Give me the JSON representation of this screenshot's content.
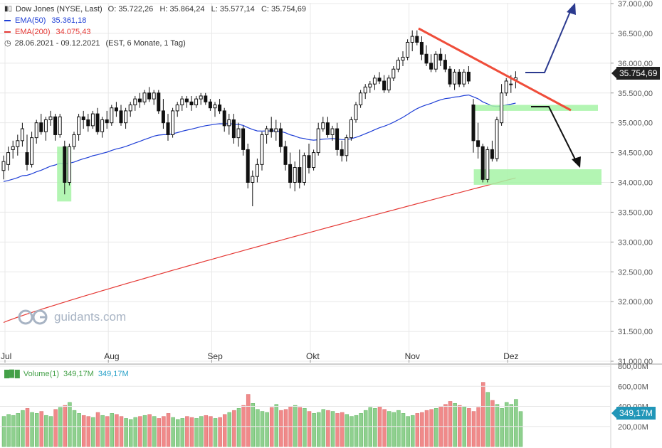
{
  "legend": {
    "title": "Dow Jones (NYSE, Last)",
    "ohlc": "O: 35.722,26   H: 35.864,24   L: 35.577,14   C: 35.754,69",
    "ema50_label": "EMA(50)",
    "ema50_value": "35.361,18",
    "ema200_label": "EMA(200)",
    "ema200_value": "34.075,43",
    "range": "28.06.2021 - 09.12.2021",
    "range_note": "(EST, 6 Monate, 1 Tag)"
  },
  "price_badge": "35.754,69",
  "volume_legend": {
    "label": "Volume(1)",
    "value1": "349,17M",
    "value2": "349,17M"
  },
  "volume_badge": "349,17M",
  "watermark": "guidants.com",
  "colors": {
    "up": "#ffffff",
    "down": "#111111",
    "ema50": "#1f3fd6",
    "ema200": "#e53935",
    "trendline": "#ef4d3a",
    "arrow_up": "#2b3a8f",
    "arrow_down": "#111111",
    "highlight": "#a6f3a6",
    "vol_up": "#8fd08f",
    "vol_down": "#f08a8a",
    "grid": "#e8e8e8"
  },
  "chart_data": {
    "type": "candlestick",
    "y_ticks": [
      "37.000,00",
      "36.500,00",
      "36.000,00",
      "35.500,00",
      "35.000,00",
      "34.500,00",
      "34.000,00",
      "33.500,00",
      "33.000,00",
      "32.500,00",
      "32.000,00",
      "31.500,00",
      "31.000,00"
    ],
    "y_values": [
      37000,
      36500,
      36000,
      35500,
      35000,
      34500,
      34000,
      33500,
      33000,
      32500,
      32000,
      31500,
      31000
    ],
    "ylim": [
      31000,
      37050
    ],
    "x_ticks": [
      {
        "label": "Jul",
        "bar": 0
      },
      {
        "label": "Aug",
        "bar": 22
      },
      {
        "label": "Sep",
        "bar": 44
      },
      {
        "label": "Okt",
        "bar": 65
      },
      {
        "label": "Nov",
        "bar": 86
      },
      {
        "label": "Dez",
        "bar": 107
      }
    ],
    "ohlc": [
      [
        34200,
        34450,
        34050,
        34350
      ],
      [
        34300,
        34600,
        34200,
        34500
      ],
      [
        34550,
        34700,
        34400,
        34600
      ],
      [
        34600,
        34800,
        34450,
        34700
      ],
      [
        34700,
        35000,
        34600,
        34900
      ],
      [
        34500,
        34800,
        34200,
        34300
      ],
      [
        34300,
        34850,
        34250,
        34750
      ],
      [
        34750,
        35050,
        34650,
        35000
      ],
      [
        35000,
        35150,
        34800,
        34850
      ],
      [
        34850,
        35100,
        34700,
        35050
      ],
      [
        35050,
        35200,
        34950,
        35100
      ],
      [
        35100,
        35150,
        34700,
        34800
      ],
      [
        34800,
        35150,
        34750,
        35100
      ],
      [
        34600,
        34700,
        33800,
        34000
      ],
      [
        34000,
        34650,
        33950,
        34600
      ],
      [
        34600,
        34850,
        34550,
        34800
      ],
      [
        34800,
        35150,
        34700,
        35100
      ],
      [
        35100,
        35200,
        34900,
        35050
      ],
      [
        35050,
        35150,
        34850,
        34950
      ],
      [
        34950,
        35200,
        34900,
        35150
      ],
      [
        35150,
        35250,
        34800,
        34850
      ],
      [
        34850,
        35100,
        34750,
        35050
      ],
      [
        35050,
        35200,
        34900,
        35000
      ],
      [
        35000,
        35300,
        34950,
        35250
      ],
      [
        35250,
        35350,
        35100,
        35200
      ],
      [
        35200,
        35300,
        34950,
        35000
      ],
      [
        35000,
        35250,
        34900,
        35200
      ],
      [
        35200,
        35350,
        35100,
        35300
      ],
      [
        35300,
        35450,
        35200,
        35400
      ],
      [
        35400,
        35500,
        35250,
        35350
      ],
      [
        35350,
        35550,
        35300,
        35500
      ],
      [
        35500,
        35600,
        35350,
        35400
      ],
      [
        35400,
        35550,
        35300,
        35500
      ],
      [
        35500,
        35550,
        35150,
        35200
      ],
      [
        35200,
        35400,
        34900,
        35000
      ],
      [
        35000,
        35150,
        34700,
        34800
      ],
      [
        34800,
        35250,
        34750,
        35200
      ],
      [
        35200,
        35350,
        35100,
        35300
      ],
      [
        35300,
        35450,
        35200,
        35400
      ],
      [
        35400,
        35450,
        35250,
        35350
      ],
      [
        35350,
        35450,
        35200,
        35300
      ],
      [
        35300,
        35450,
        35250,
        35400
      ],
      [
        35400,
        35500,
        35300,
        35450
      ],
      [
        35450,
        35500,
        35300,
        35350
      ],
      [
        35350,
        35400,
        35200,
        35250
      ],
      [
        35250,
        35350,
        35100,
        35300
      ],
      [
        35300,
        35400,
        35150,
        35200
      ],
      [
        35200,
        35250,
        34850,
        34950
      ],
      [
        34950,
        35150,
        34800,
        35050
      ],
      [
        35050,
        35150,
        34650,
        34750
      ],
      [
        34750,
        35000,
        34600,
        34900
      ],
      [
        34900,
        34950,
        34450,
        34550
      ],
      [
        34550,
        34650,
        33900,
        34000
      ],
      [
        34000,
        34200,
        33600,
        34100
      ],
      [
        34100,
        34400,
        34000,
        34300
      ],
      [
        34300,
        34850,
        34200,
        34800
      ],
      [
        34800,
        34950,
        34650,
        34900
      ],
      [
        34900,
        35100,
        34750,
        34850
      ],
      [
        34850,
        35050,
        34700,
        34900
      ],
      [
        34900,
        35000,
        34500,
        34600
      ],
      [
        34600,
        34700,
        34200,
        34300
      ],
      [
        34300,
        34500,
        33900,
        34000
      ],
      [
        34000,
        34350,
        33850,
        34250
      ],
      [
        34250,
        34550,
        33900,
        34000
      ],
      [
        34000,
        34500,
        33950,
        34450
      ],
      [
        34450,
        34650,
        34150,
        34250
      ],
      [
        34250,
        34550,
        34200,
        34500
      ],
      [
        34500,
        35000,
        34450,
        34900
      ],
      [
        34900,
        35100,
        34850,
        35000
      ],
      [
        35000,
        35100,
        34750,
        34800
      ],
      [
        34800,
        34950,
        34700,
        34900
      ],
      [
        34900,
        35000,
        34450,
        34550
      ],
      [
        34550,
        34700,
        34350,
        34450
      ],
      [
        34450,
        34800,
        34350,
        34750
      ],
      [
        34750,
        35100,
        34700,
        35050
      ],
      [
        35050,
        35350,
        35000,
        35300
      ],
      [
        35300,
        35550,
        35250,
        35500
      ],
      [
        35500,
        35650,
        35400,
        35600
      ],
      [
        35600,
        35700,
        35500,
        35650
      ],
      [
        35650,
        35800,
        35550,
        35750
      ],
      [
        35750,
        35850,
        35650,
        35700
      ],
      [
        35700,
        35800,
        35500,
        35550
      ],
      [
        35550,
        35800,
        35500,
        35750
      ],
      [
        35750,
        35950,
        35700,
        35900
      ],
      [
        35900,
        36100,
        35850,
        36050
      ],
      [
        36050,
        36200,
        35950,
        36100
      ],
      [
        36100,
        36400,
        36050,
        36350
      ],
      [
        36350,
        36550,
        36200,
        36450
      ],
      [
        36450,
        36550,
        36300,
        36350
      ],
      [
        36350,
        36450,
        36050,
        36150
      ],
      [
        36150,
        36300,
        35950,
        36000
      ],
      [
        36000,
        36150,
        35850,
        35900
      ],
      [
        35900,
        36200,
        35850,
        36150
      ],
      [
        36150,
        36250,
        35950,
        36050
      ],
      [
        36050,
        36150,
        35850,
        35900
      ],
      [
        35900,
        35950,
        35600,
        35650
      ],
      [
        35650,
        35900,
        35550,
        35850
      ],
      [
        35850,
        35900,
        35600,
        35650
      ],
      [
        35650,
        35900,
        35600,
        35850
      ],
      [
        35850,
        35950,
        35650,
        35700
      ],
      [
        35300,
        35400,
        34500,
        34700
      ],
      [
        34700,
        35000,
        34400,
        34600
      ],
      [
        34600,
        34650,
        34000,
        34050
      ],
      [
        34050,
        34600,
        34000,
        34550
      ],
      [
        34550,
        34700,
        34350,
        34400
      ],
      [
        34400,
        35100,
        34350,
        35050
      ],
      [
        35000,
        35650,
        34950,
        35500
      ],
      [
        35500,
        35750,
        35450,
        35700
      ],
      [
        35650,
        35800,
        35500,
        35650
      ],
      [
        35722,
        35864,
        35577,
        35755
      ]
    ],
    "volume_M": [
      300,
      320,
      310,
      330,
      360,
      380,
      340,
      330,
      350,
      310,
      300,
      370,
      390,
      410,
      440,
      360,
      330,
      310,
      300,
      290,
      340,
      310,
      300,
      330,
      320,
      300,
      280,
      270,
      290,
      300,
      310,
      320,
      300,
      280,
      300,
      330,
      290,
      270,
      280,
      300,
      290,
      280,
      300,
      310,
      300,
      280,
      290,
      320,
      340,
      360,
      380,
      410,
      520,
      430,
      370,
      350,
      340,
      390,
      420,
      360,
      370,
      400,
      410,
      390,
      380,
      350,
      330,
      340,
      370,
      360,
      350,
      330,
      340,
      320,
      300,
      310,
      330,
      360,
      390,
      380,
      400,
      370,
      350,
      340,
      360,
      330,
      300,
      310,
      330,
      340,
      360,
      370,
      380,
      400,
      420,
      450,
      430,
      410,
      400,
      380,
      350,
      390,
      640,
      540,
      460,
      420,
      380,
      440,
      420,
      470,
      349
    ]
  }
}
